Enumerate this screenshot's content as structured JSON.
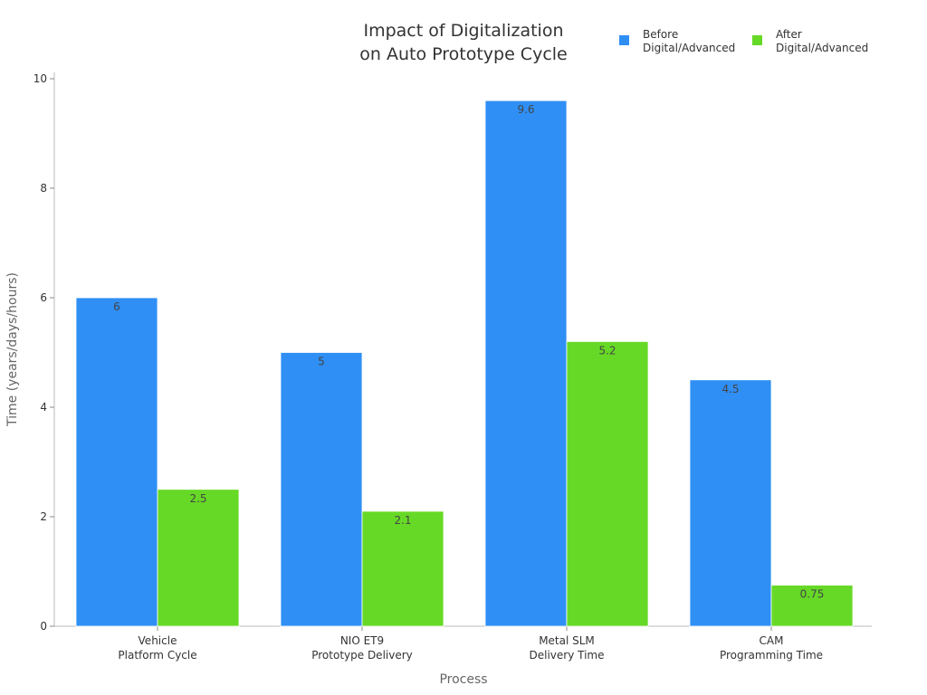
{
  "chart_data": {
    "type": "bar",
    "title": [
      "Impact of Digitalization",
      "on Auto Prototype Cycle"
    ],
    "categories": [
      [
        "Vehicle",
        "Platform Cycle"
      ],
      [
        "NIO ET9",
        "Prototype Delivery"
      ],
      [
        "Metal SLM",
        "Delivery Time"
      ],
      [
        "CAM",
        "Programming Time"
      ]
    ],
    "series": [
      {
        "name": [
          "Before",
          "Digital/Advanced"
        ],
        "color": "#2f8ff5",
        "values": [
          6,
          5,
          9.6,
          4.5
        ],
        "labels": [
          "6",
          "5",
          "9.6",
          "4.5"
        ]
      },
      {
        "name": [
          "After",
          "Digital/Advanced"
        ],
        "color": "#66d926",
        "values": [
          2.5,
          2.1,
          5.2,
          0.75
        ],
        "labels": [
          "2.5",
          "2.1",
          "5.2",
          "0.75"
        ]
      }
    ],
    "xlabel": "Process",
    "ylabel": "Time (years/days/hours)",
    "ylim": [
      0,
      10
    ],
    "yticks": [
      0,
      2,
      4,
      6,
      8,
      10
    ],
    "legend_position": "top-right",
    "grid": false
  }
}
